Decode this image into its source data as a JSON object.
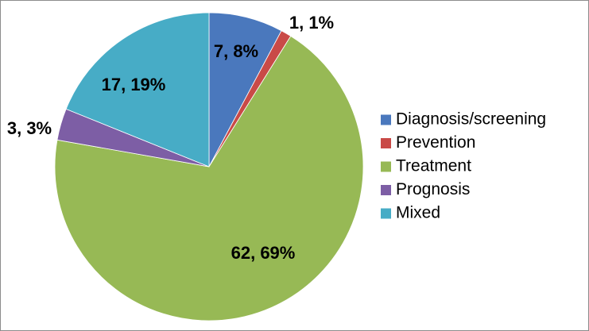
{
  "chart_data": {
    "type": "pie",
    "categories": [
      "Diagnosis/screening",
      "Prevention",
      "Treatment",
      "Prognosis",
      "Mixed"
    ],
    "values": [
      7,
      1,
      62,
      3,
      17
    ],
    "percentages": [
      8,
      1,
      69,
      3,
      19
    ],
    "data_labels": [
      "7, 8%",
      "1, 1%",
      "62, 69%",
      "3, 3%",
      "17, 19%"
    ],
    "colors": [
      "#4a78bd",
      "#c94a47",
      "#97b955",
      "#7d5ea5",
      "#47acc6"
    ],
    "start_angle_deg": 0,
    "direction": "clockwise",
    "legend_position": "right",
    "title": ""
  }
}
